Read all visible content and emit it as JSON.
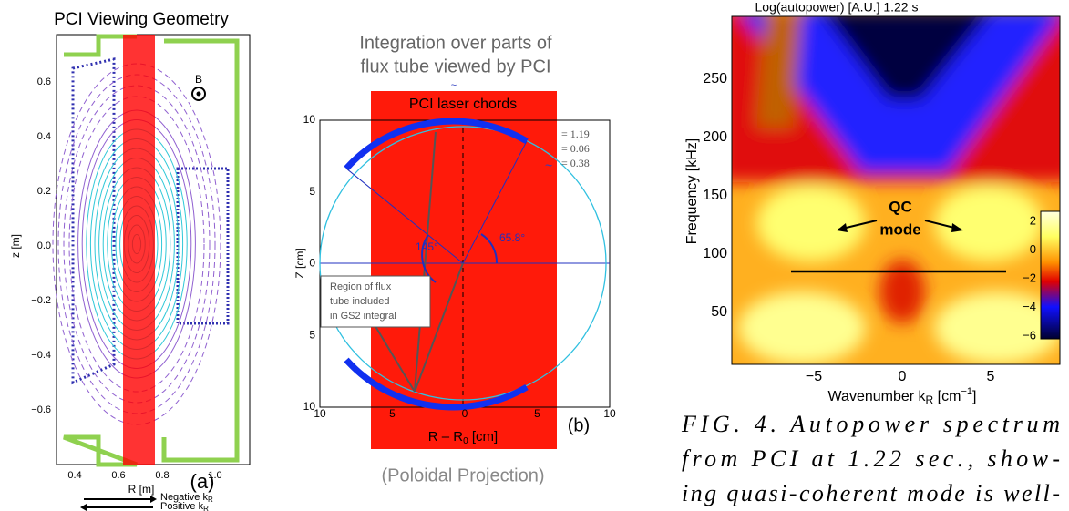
{
  "panel_a": {
    "title": "PCI Viewing Geometry",
    "label": "(a)",
    "b_label": "B",
    "x_axis": {
      "label": "R [m]",
      "ticks": [
        "0.4",
        "0.6",
        "0.8",
        "1.0"
      ]
    },
    "y_axis": {
      "label": "z [m]",
      "ticks": [
        "0.6",
        "0.4",
        "0.2",
        "0.0",
        "−0.2",
        "−0.4",
        "−0.6"
      ]
    },
    "legend": [
      {
        "text": "Negative k",
        "sub": "R"
      },
      {
        "text": "Positive k",
        "sub": "R"
      }
    ]
  },
  "panel_b": {
    "title": [
      "Integration over parts of",
      "flux tube viewed by PCI"
    ],
    "tilde": "~",
    "chords_label": "PCI laser chords",
    "label": "(b)",
    "params": [
      "= 1.19",
      "= 0.06",
      "= 0.38"
    ],
    "param_tilde": "~",
    "angles": [
      "145°",
      "65.8°"
    ],
    "region_note": [
      "Region of flux",
      "tube included",
      "in GS2 integral"
    ],
    "x_axis": {
      "label": "R – R",
      "sub": "0",
      "unit": " [cm]",
      "ticks": [
        "10",
        "5",
        "0",
        "5",
        "10"
      ]
    },
    "y_axis": {
      "label": "Z [cm]",
      "ticks": [
        "10",
        "5",
        "0",
        "5",
        "10"
      ]
    },
    "caption": "(Poloidal Projection)"
  },
  "panel_c": {
    "title": "Log(autopower) [A.U.]    1.22 s",
    "y_axis": {
      "label": "Frequency [kHz]",
      "ticks": [
        "250",
        "200",
        "150",
        "100",
        "50"
      ]
    },
    "x_axis": {
      "label": "Wavenumber k",
      "sub": "R",
      "unit": " [cm",
      "sup": "−1",
      "end": "]",
      "ticks": [
        "−5",
        "0",
        "5"
      ]
    },
    "annotation": [
      "QC",
      "mode"
    ],
    "colorbar_ticks": [
      "2",
      "0",
      "−2",
      "−4",
      "−6"
    ]
  },
  "caption": [
    "FIG. 4.   Autopower spectrum",
    "from PCI at 1.22 sec., show-",
    "ing quasi-coherent mode is well-"
  ]
}
